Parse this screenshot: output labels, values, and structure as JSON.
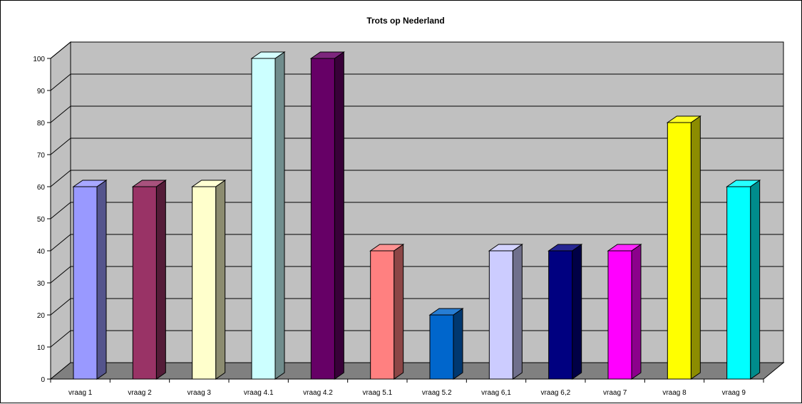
{
  "chart_data": {
    "type": "bar",
    "title": "Trots op Nederland",
    "xlabel": "",
    "ylabel": "",
    "categories": [
      "vraag 1",
      "vraag 2",
      "vraag 3",
      "vraag 4.1",
      "vraag 4.2",
      "vraag 5.1",
      "vraag 5.2",
      "vraag 6,1",
      "vraag 6,2",
      "vraag 7",
      "vraag 8",
      "vraag 9"
    ],
    "values": [
      60,
      60,
      60,
      100,
      100,
      40,
      20,
      40,
      40,
      40,
      80,
      60
    ],
    "colors": [
      "#9999ff",
      "#993366",
      "#ffffcc",
      "#ccffff",
      "#660066",
      "#ff8080",
      "#0066cc",
      "#ccccff",
      "#000080",
      "#ff00ff",
      "#ffff00",
      "#00ffff"
    ],
    "ylim": [
      0,
      100
    ],
    "yticks": [
      0,
      10,
      20,
      30,
      40,
      50,
      60,
      70,
      80,
      90,
      100
    ],
    "grid": true,
    "legend": "none",
    "style": "3d-column",
    "wall_color": "#c0c0c0",
    "floor_color": "#808080"
  }
}
